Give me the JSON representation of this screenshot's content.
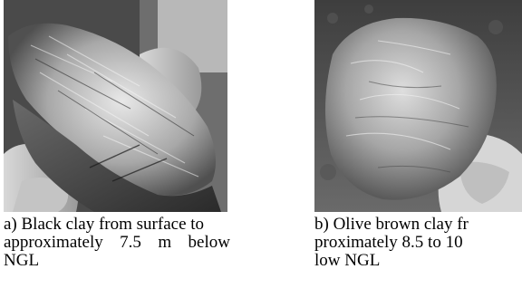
{
  "figures": [
    {
      "caption_lines": [
        "a) Black clay from surface to",
        "approximately 7.5 m below",
        "NGL"
      ]
    },
    {
      "caption_lines": [
        "b) Olive brown clay fr",
        "proximately 8.5 to 10",
        "low NGL"
      ]
    }
  ]
}
